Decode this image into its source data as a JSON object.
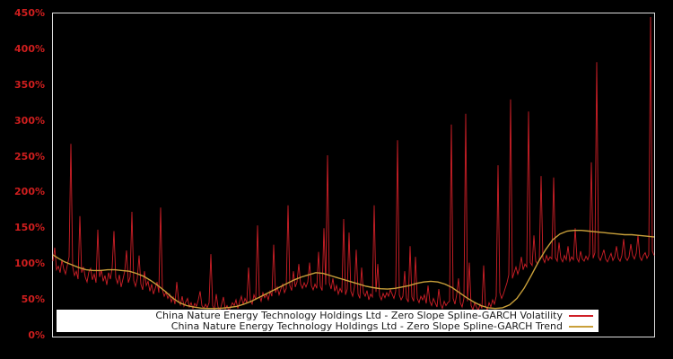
{
  "window": {
    "background": "#000000"
  },
  "chart_data": {
    "type": "line",
    "title": "",
    "xlabel": "",
    "ylabel": "",
    "ylim": [
      0,
      450
    ],
    "y_unit": "%",
    "grid": false,
    "x_axis_labels_visible": false,
    "plot_background": "#000000",
    "axis_frame_color": "#dcdcdc",
    "tick_label_color": "#cf1e1e",
    "y_tick_values": [
      0,
      50,
      100,
      150,
      200,
      250,
      300,
      350,
      400,
      450
    ],
    "y_tick_labels": [
      "0%",
      "50%",
      "100%",
      "150%",
      "200%",
      "250%",
      "300%",
      "350%",
      "400%",
      "450%"
    ],
    "legend": {
      "position": "bottom-center",
      "background": "#ffffff",
      "text_color": "#1a1a1a"
    },
    "series": [
      {
        "name": "China Nature Energy Technology Holdings Ltd - Zero Slope Spline-GARCH Volatility",
        "color": "#cf1f27",
        "line_width": 0.9,
        "values": [
          104,
          123,
          92,
          97,
          88,
          106,
          93,
          86,
          98,
          110,
          268,
          96,
          84,
          90,
          79,
          167,
          88,
          96,
          82,
          75,
          89,
          94,
          78,
          86,
          74,
          148,
          82,
          92,
          76,
          84,
          71,
          88,
          79,
          95,
          146,
          81,
          73,
          85,
          68,
          79,
          90,
          119,
          74,
          82,
          173,
          77,
          69,
          80,
          112,
          72,
          64,
          90,
          70,
          76,
          62,
          72,
          58,
          66,
          75,
          60,
          179,
          64,
          55,
          61,
          52,
          58,
          47,
          54,
          44,
          75,
          50,
          43,
          55,
          41,
          47,
          52,
          40,
          46,
          38,
          45,
          41,
          50,
          62,
          42,
          38,
          44,
          39,
          46,
          114,
          42,
          36,
          58,
          40,
          34,
          44,
          54,
          37,
          42,
          35,
          40,
          46,
          42,
          50,
          38,
          47,
          55,
          43,
          52,
          46,
          95,
          49,
          44,
          57,
          50,
          154,
          56,
          48,
          60,
          53,
          58,
          50,
          62,
          55,
          127,
          60,
          68,
          57,
          65,
          72,
          60,
          66,
          182,
          70,
          63,
          90,
          68,
          75,
          100,
          72,
          66,
          74,
          68,
          75,
          102,
          70,
          64,
          72,
          66,
          117,
          69,
          63,
          150,
          71,
          252,
          74,
          65,
          80,
          62,
          70,
          58,
          66,
          60,
          163,
          57,
          65,
          144,
          62,
          55,
          68,
          120,
          58,
          52,
          95,
          60,
          55,
          63,
          50,
          58,
          54,
          182,
          61,
          100,
          56,
          50,
          59,
          53,
          60,
          55,
          64,
          58,
          52,
          62,
          273,
          57,
          50,
          55,
          90,
          52,
          47,
          125,
          54,
          48,
          110,
          52,
          46,
          55,
          50,
          57,
          45,
          70,
          48,
          42,
          52,
          46,
          40,
          65,
          44,
          38,
          48,
          42,
          46,
          48,
          295,
          52,
          44,
          58,
          80,
          46,
          40,
          52,
          310,
          48,
          102,
          42,
          36,
          46,
          40,
          35,
          44,
          38,
          98,
          42,
          36,
          46,
          40,
          50,
          44,
          55,
          238,
          60,
          52,
          58,
          66,
          74,
          85,
          330,
          80,
          88,
          96,
          86,
          94,
          110,
          92,
          100,
          96,
          313,
          102,
          98,
          140,
          104,
          100,
          106,
          223,
          108,
          102,
          112,
          105,
          110,
          107,
          221,
          109,
          104,
          130,
          108,
          103,
          112,
          106,
          125,
          104,
          110,
          106,
          150,
          108,
          103,
          118,
          107,
          104,
          111,
          106,
          114,
          242,
          108,
          116,
          382,
          110,
          105,
          112,
          120,
          107,
          103,
          109,
          115,
          105,
          110,
          125,
          108,
          104,
          112,
          135,
          109,
          105,
          110,
          128,
          112,
          107,
          115,
          140,
          110,
          105,
          112,
          116,
          108,
          113,
          445,
          118,
          112
        ]
      },
      {
        "name": "China Nature Energy Technology Holdings Ltd - Zero Slope Spline-GARCH Trend",
        "color": "#c9a03a",
        "line_width": 1.4,
        "points": [
          [
            0,
            113
          ],
          [
            3,
            108
          ],
          [
            6.5,
            103
          ],
          [
            10.5,
            99
          ],
          [
            14.5,
            95
          ],
          [
            18.5,
            92
          ],
          [
            22.5,
            91
          ],
          [
            26.5,
            91
          ],
          [
            30.5,
            92
          ],
          [
            34.5,
            92
          ],
          [
            38.5,
            91
          ],
          [
            42.5,
            90
          ],
          [
            46.5,
            87
          ],
          [
            50.5,
            83
          ],
          [
            54.5,
            77
          ],
          [
            58.5,
            70
          ],
          [
            62.5,
            62
          ],
          [
            66.5,
            53
          ],
          [
            70.5,
            46
          ],
          [
            74.5,
            42
          ],
          [
            78.5,
            40
          ],
          [
            82.5,
            38.5
          ],
          [
            86.5,
            38
          ],
          [
            90.5,
            38
          ],
          [
            94.5,
            38.5
          ],
          [
            98.5,
            39.5
          ],
          [
            102.5,
            41
          ],
          [
            106.5,
            44
          ],
          [
            110.5,
            48
          ],
          [
            114.5,
            53
          ],
          [
            118.5,
            58
          ],
          [
            122.5,
            63
          ],
          [
            126.5,
            68
          ],
          [
            130.5,
            73
          ],
          [
            134.5,
            78
          ],
          [
            138.5,
            82
          ],
          [
            142.5,
            85
          ],
          [
            146.5,
            88
          ],
          [
            150.5,
            87
          ],
          [
            154.5,
            84
          ],
          [
            158.5,
            81
          ],
          [
            162.5,
            78
          ],
          [
            166.5,
            75
          ],
          [
            170.5,
            72
          ],
          [
            174.5,
            69
          ],
          [
            178.5,
            67
          ],
          [
            182.5,
            65.5
          ],
          [
            186.5,
            65
          ],
          [
            190.5,
            66
          ],
          [
            194.5,
            68
          ],
          [
            198.5,
            70
          ],
          [
            202.5,
            73
          ],
          [
            206.5,
            75
          ],
          [
            210.5,
            76
          ],
          [
            214.5,
            75
          ],
          [
            218.5,
            72
          ],
          [
            222.5,
            67
          ],
          [
            226.5,
            60
          ],
          [
            230.5,
            53
          ],
          [
            234.5,
            47
          ],
          [
            238.5,
            42
          ],
          [
            242.5,
            39
          ],
          [
            246.5,
            38
          ],
          [
            250.5,
            39
          ],
          [
            254.5,
            43
          ],
          [
            258.5,
            52
          ],
          [
            262.5,
            66
          ],
          [
            266.5,
            84
          ],
          [
            270.5,
            103
          ],
          [
            274.5,
            120
          ],
          [
            278.5,
            134
          ],
          [
            282.5,
            142
          ],
          [
            286.5,
            146
          ],
          [
            290.5,
            147
          ],
          [
            294.5,
            147
          ],
          [
            298.5,
            146
          ],
          [
            302.5,
            145
          ],
          [
            306.5,
            144
          ],
          [
            310.5,
            143
          ],
          [
            314.5,
            142
          ],
          [
            318.5,
            141
          ],
          [
            322.5,
            141
          ],
          [
            326.5,
            140
          ],
          [
            330.5,
            139
          ],
          [
            334.5,
            138
          ],
          [
            335,
            138
          ]
        ]
      }
    ]
  }
}
